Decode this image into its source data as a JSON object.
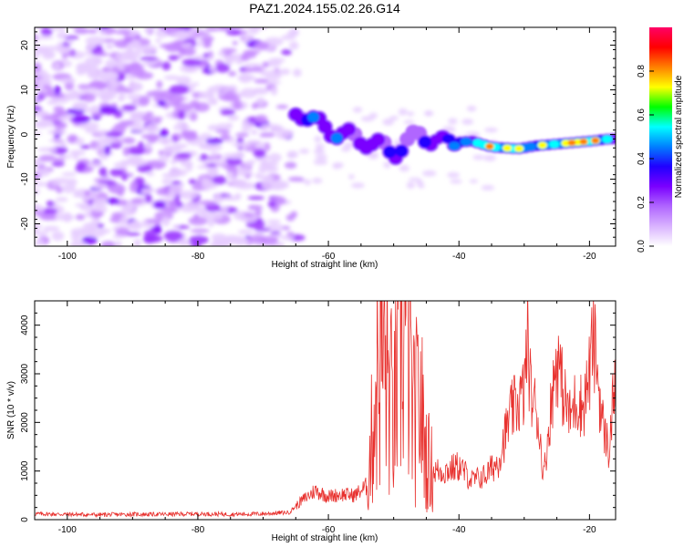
{
  "title": "PAZ1.2024.155.02.26.G14",
  "chart_data": [
    {
      "type": "heatmap",
      "xlabel": "Height of straight line (km)",
      "ylabel": "Frequency (Hz)",
      "xlim": [
        -105,
        -16
      ],
      "ylim": [
        -25,
        24
      ],
      "xticks": [
        -100,
        -80,
        -60,
        -40,
        -20
      ],
      "yticks": [
        -20,
        -10,
        0,
        10,
        20
      ],
      "colorbar": {
        "label": "Normalized spectral amplitude",
        "range": [
          0,
          1
        ],
        "ticks": [
          0.0,
          0.2,
          0.4,
          0.6,
          0.8
        ],
        "colormap": [
          "#ffffff",
          "#d9b3ff",
          "#b066ff",
          "#7a00ff",
          "#2000ff",
          "#0080ff",
          "#00ffff",
          "#00ff00",
          "#ffff00",
          "#ff8000",
          "#ff0000",
          "#ff0066"
        ]
      },
      "signal_track": [
        {
          "x": -64,
          "y": 5,
          "amp": 0.3
        },
        {
          "x": -62,
          "y": 2.5,
          "amp": 0.35
        },
        {
          "x": -58,
          "y": 0,
          "amp": 0.3
        },
        {
          "x": -54,
          "y": -1.5,
          "amp": 0.25
        },
        {
          "x": -50,
          "y": -4,
          "amp": 0.3
        },
        {
          "x": -46,
          "y": 0,
          "amp": 0.22
        },
        {
          "x": -42,
          "y": -2,
          "amp": 0.35
        },
        {
          "x": -38,
          "y": -1.5,
          "amp": 0.45
        },
        {
          "x": -35,
          "y": -2.8,
          "amp": 0.7
        },
        {
          "x": -31,
          "y": -3.2,
          "amp": 0.6
        },
        {
          "x": -28,
          "y": -2.5,
          "amp": 0.55
        },
        {
          "x": -24,
          "y": -2,
          "amp": 0.6
        },
        {
          "x": -20,
          "y": -1.5,
          "amp": 0.85
        },
        {
          "x": -17,
          "y": -1,
          "amp": 0.4
        }
      ]
    },
    {
      "type": "line",
      "xlabel": "Height of straight line (km)",
      "ylabel": "SNR (10 * v/v)",
      "xlim": [
        -105,
        -16
      ],
      "ylim": [
        0,
        4500
      ],
      "xticks": [
        -100,
        -80,
        -60,
        -40,
        -20
      ],
      "yticks": [
        0,
        1000,
        2000,
        3000,
        4000
      ],
      "color": "#e8312e",
      "series": [
        {
          "x": [
            -105,
            -100,
            -95,
            -90,
            -85,
            -80,
            -75,
            -70,
            -66,
            -64,
            -62,
            -60,
            -58,
            -56,
            -54,
            -53,
            -52,
            -51,
            -50,
            -49,
            -48,
            -47,
            -46,
            -45,
            -44,
            -42,
            -40,
            -38,
            -36,
            -34,
            -32,
            -31,
            -30,
            -29.5,
            -29,
            -28,
            -27,
            -26,
            -25,
            -24,
            -23,
            -22,
            -21,
            -20,
            -19.5,
            -19,
            -18.5,
            -18,
            -17,
            -16
          ],
          "values": [
            120,
            110,
            100,
            110,
            110,
            120,
            110,
            120,
            150,
            400,
            600,
            480,
            520,
            500,
            700,
            2200,
            3800,
            3000,
            2000,
            3600,
            4400,
            2000,
            2500,
            1300,
            1000,
            1000,
            1100,
            800,
            900,
            1200,
            2200,
            2400,
            2600,
            3800,
            2600,
            2200,
            900,
            2200,
            3400,
            2600,
            2100,
            2500,
            2300,
            3000,
            3700,
            3400,
            2600,
            2000,
            1400,
            3100
          ]
        }
      ]
    }
  ]
}
